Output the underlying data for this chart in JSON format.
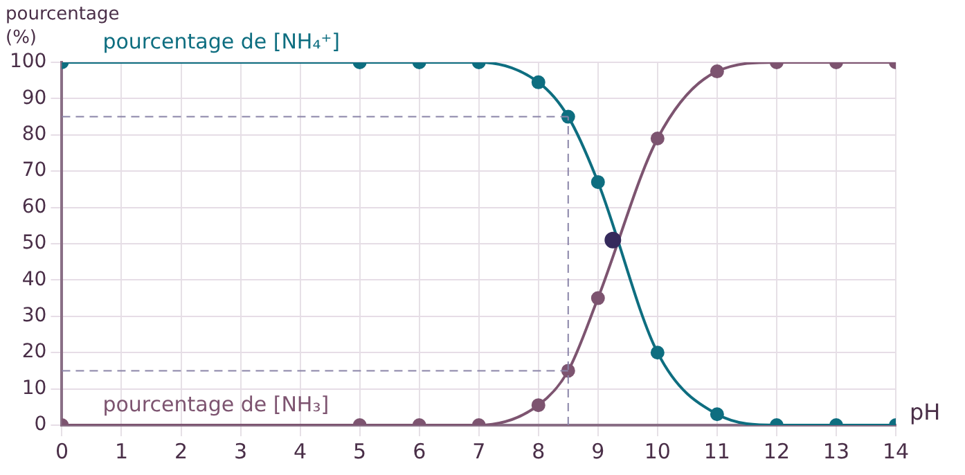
{
  "chart_data": {
    "type": "line",
    "xlabel": "pH",
    "ylabel": "pourcentage (%)",
    "xlim": [
      0,
      14
    ],
    "xticks": [
      0,
      1,
      2,
      3,
      4,
      5,
      6,
      7,
      8,
      9,
      10,
      11,
      12,
      13,
      14
    ],
    "ylim": [
      0,
      100
    ],
    "yticks": [
      0,
      10,
      20,
      30,
      40,
      50,
      60,
      70,
      80,
      90,
      100
    ],
    "grid": true,
    "legend": false,
    "marker": "circle",
    "line_style": "solid",
    "series": [
      {
        "name": "pourcentage de [NH₄⁺]",
        "color": "#0e6e80",
        "x": [
          0,
          5,
          6,
          7,
          8,
          8.5,
          9,
          10,
          11,
          12,
          13,
          14
        ],
        "values": [
          100,
          100,
          100,
          100,
          94.5,
          85,
          67,
          20,
          3,
          0,
          0,
          0
        ]
      },
      {
        "name": "pourcentage de [NH₃]",
        "color": "#7d5470",
        "x": [
          0,
          5,
          6,
          7,
          8,
          8.5,
          9,
          10,
          11,
          12,
          13,
          14
        ],
        "values": [
          0,
          0,
          0,
          0,
          5.5,
          15,
          35,
          79,
          97.5,
          100,
          100,
          100
        ]
      },
      {
        "type": "scatter",
        "color": "#352a5c",
        "x": [
          9.25
        ],
        "values": [
          51
        ]
      }
    ],
    "ref_lines": [
      {
        "axis": "y",
        "value": 85,
        "color": "#8a84a8",
        "line_style": "dashed"
      },
      {
        "axis": "y",
        "value": 15,
        "color": "#8a84a8",
        "line_style": "dashed"
      },
      {
        "axis": "x",
        "value": 8.5,
        "color": "#8a84a8",
        "line_style": "dashed"
      }
    ]
  }
}
